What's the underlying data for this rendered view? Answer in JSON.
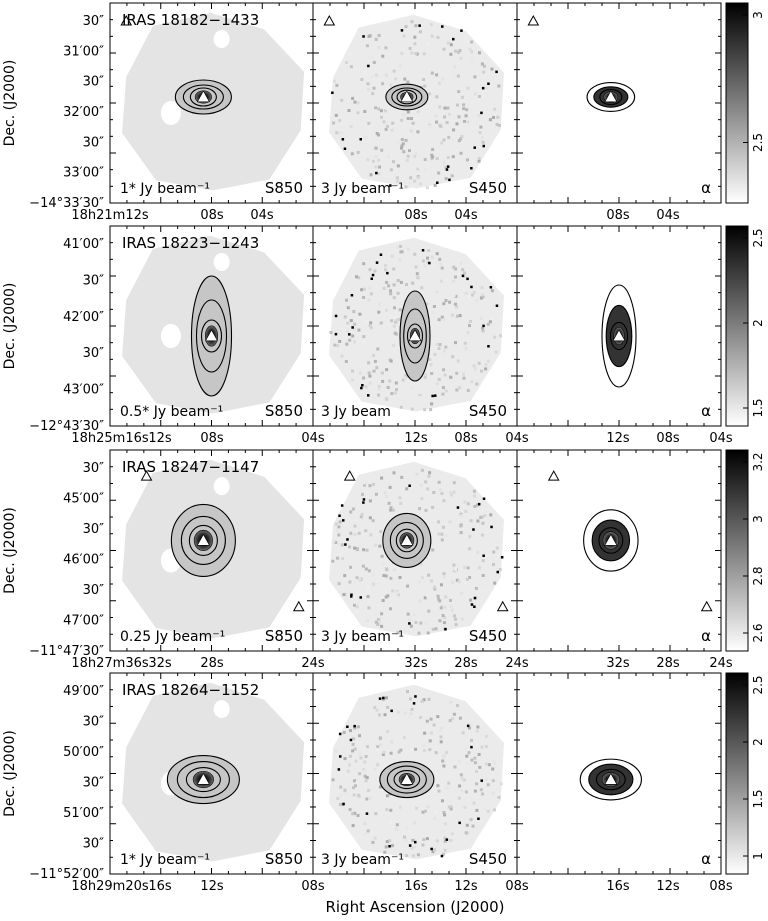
{
  "figure": {
    "xlabel": "Right Ascension (J2000)",
    "ylabel": "Dec. (J2000)",
    "rows": [
      {
        "source": "IRAS 18182−1433",
        "s850_scale": "1* Jy beam⁻¹",
        "s450_scale": "3 Jy beam⁻¹",
        "panel_labels": [
          "S850",
          "S450",
          "α"
        ],
        "dec_ticks": [
          "30″",
          "31′00″",
          "30″",
          "32′00″",
          "30″",
          "33′00″",
          "−14°33′30″"
        ],
        "ra_ticks": [
          "18h21m12s",
          "08s",
          "04s",
          "08s",
          "04s",
          "08s",
          "04s"
        ],
        "colorbar_ticks": [
          "3",
          "2.5"
        ]
      },
      {
        "source": "IRAS 18223−1243",
        "s850_scale": "0.5* Jy beam⁻¹",
        "s450_scale": "3 Jy beam",
        "panel_labels": [
          "S850",
          "S450",
          "α"
        ],
        "dec_ticks": [
          "41′00″",
          "30″",
          "42′00″",
          "30″",
          "43′00″",
          "−12°43′30″"
        ],
        "ra_ticks": [
          "18h25m16s",
          "12s",
          "08s",
          "04s",
          "12s",
          "08s",
          "04s",
          "12s",
          "08s",
          "04s"
        ],
        "colorbar_ticks": [
          "2.5",
          "2",
          "1.5"
        ]
      },
      {
        "source": "IRAS 18247−1147",
        "s850_scale": "0.25 Jy beam⁻¹",
        "s450_scale": "3 Jy beam⁻¹",
        "panel_labels": [
          "S850",
          "S450",
          "α"
        ],
        "dec_ticks": [
          "30″",
          "45′00″",
          "30″",
          "46′00″",
          "30″",
          "47′00″",
          "−11°47′30″"
        ],
        "ra_ticks": [
          "18h27m36s",
          "32s",
          "28s",
          "24s",
          "32s",
          "28s",
          "24s",
          "32s",
          "28s",
          "24s"
        ],
        "colorbar_ticks": [
          "3.2",
          "3",
          "2.8",
          "2.6"
        ]
      },
      {
        "source": "IRAS 18264−1152",
        "s850_scale": "1* Jy beam⁻¹",
        "s450_scale": "3 Jy beam⁻¹",
        "panel_labels": [
          "S850",
          "S450",
          "α"
        ],
        "dec_ticks": [
          "49′00″",
          "30″",
          "50′00″",
          "30″",
          "51′00″",
          "30″",
          "−11°52′00″"
        ],
        "ra_ticks": [
          "18h29m20s",
          "16s",
          "12s",
          "08s",
          "16s",
          "12s",
          "08s",
          "16s",
          "12s",
          "08s"
        ],
        "colorbar_ticks": [
          "2.5",
          "2",
          "1.5",
          "1"
        ]
      }
    ]
  }
}
